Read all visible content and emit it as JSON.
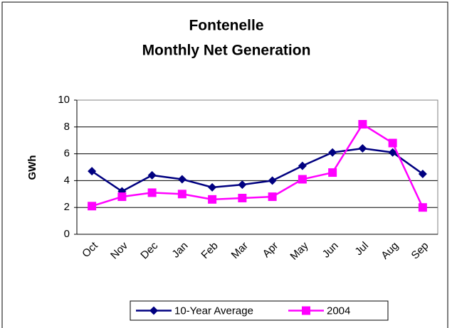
{
  "chart_data": {
    "type": "line",
    "title": [
      "Fontenelle",
      "Monthly Net Generation"
    ],
    "y_label": "GWh",
    "categories": [
      "Oct",
      "Nov",
      "Dec",
      "Jan",
      "Feb",
      "Mar",
      "Apr",
      "May",
      "Jun",
      "Jul",
      "Aug",
      "Sep"
    ],
    "series": [
      {
        "name": "10-Year Average",
        "color": "#000080",
        "marker": "diamond",
        "values": [
          4.7,
          3.2,
          4.4,
          4.1,
          3.5,
          3.7,
          4.0,
          5.1,
          6.1,
          6.4,
          6.1,
          4.5
        ]
      },
      {
        "name": "2004",
        "color": "#ff00ff",
        "marker": "square",
        "values": [
          2.1,
          2.8,
          3.1,
          3.0,
          2.6,
          2.7,
          2.8,
          4.1,
          4.6,
          8.2,
          6.8,
          2.0
        ]
      }
    ],
    "ylim": [
      0,
      10
    ],
    "yticks": [
      0,
      2,
      4,
      6,
      8,
      10
    ],
    "grid": true,
    "legend": "bottom"
  }
}
